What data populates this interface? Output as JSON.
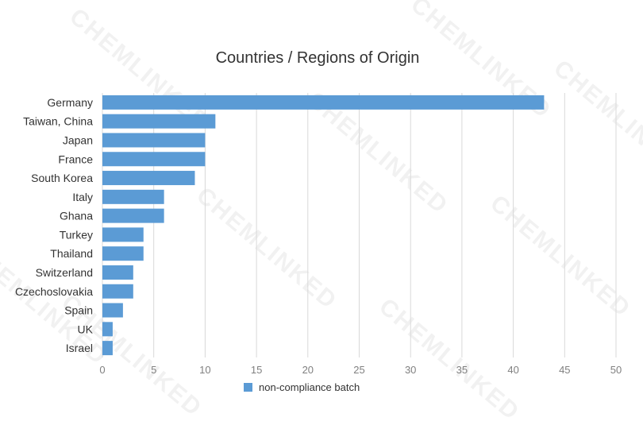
{
  "chart_data": {
    "type": "bar",
    "orientation": "horizontal",
    "title": "Countries / Regions of Origin",
    "xlabel": "",
    "ylabel": "",
    "categories": [
      "Germany",
      "Taiwan, China",
      "Japan",
      "France",
      "South Korea",
      "Italy",
      "Ghana",
      "Turkey",
      "Thailand",
      "Switzerland",
      "Czechoslovakia",
      "Spain",
      "UK",
      "Israel"
    ],
    "series": [
      {
        "name": "non-compliance batch",
        "color": "#5b9bd5",
        "values": [
          43,
          11,
          10,
          10,
          9,
          6,
          6,
          4,
          4,
          3,
          3,
          2,
          1,
          1
        ]
      }
    ],
    "xlim": [
      0,
      50
    ],
    "xticks": [
      0,
      5,
      10,
      15,
      20,
      25,
      30,
      35,
      40,
      45,
      50
    ],
    "grid": true,
    "legend_position": "bottom"
  },
  "watermark": {
    "text": "CHEMLINKED"
  }
}
